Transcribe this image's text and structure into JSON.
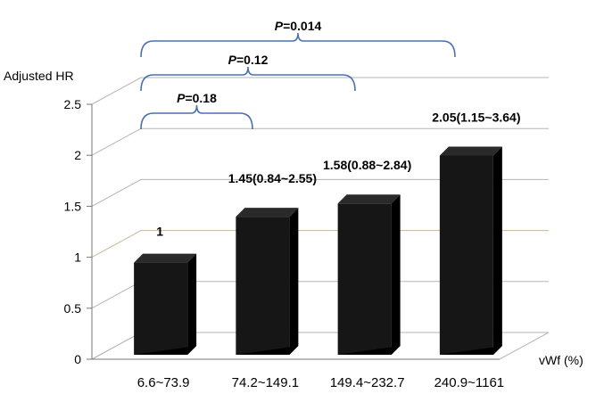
{
  "chart_data": {
    "type": "bar",
    "title": "",
    "xlabel": "vWf (%)",
    "ylabel": "Adjusted HR",
    "categories": [
      "6.6~73.9",
      "74.2~149.1",
      "149.4~232.7",
      "240.9~1161"
    ],
    "values": [
      1,
      1.45,
      1.58,
      2.05
    ],
    "data_labels": [
      "1",
      "1.45(0.84~2.55)",
      "1.58(0.88~2.84)",
      "2.05(1.15~3.64)"
    ],
    "ylim": [
      0,
      2.5
    ],
    "yticks": [
      "0",
      "0.5",
      "1",
      "1.5",
      "2",
      "2.5"
    ],
    "grid": true,
    "style": "3d-column",
    "bar_color": "#161616",
    "bracket_color": "#4a70b0",
    "comparisons": [
      {
        "label_prefix": "P",
        "label_value": "=0.18",
        "from": 0,
        "to": 1
      },
      {
        "label_prefix": "P",
        "label_value": "=0.12",
        "from": 0,
        "to": 2
      },
      {
        "label_prefix": "P",
        "label_value": "=0.014",
        "from": 0,
        "to": 3
      }
    ]
  }
}
